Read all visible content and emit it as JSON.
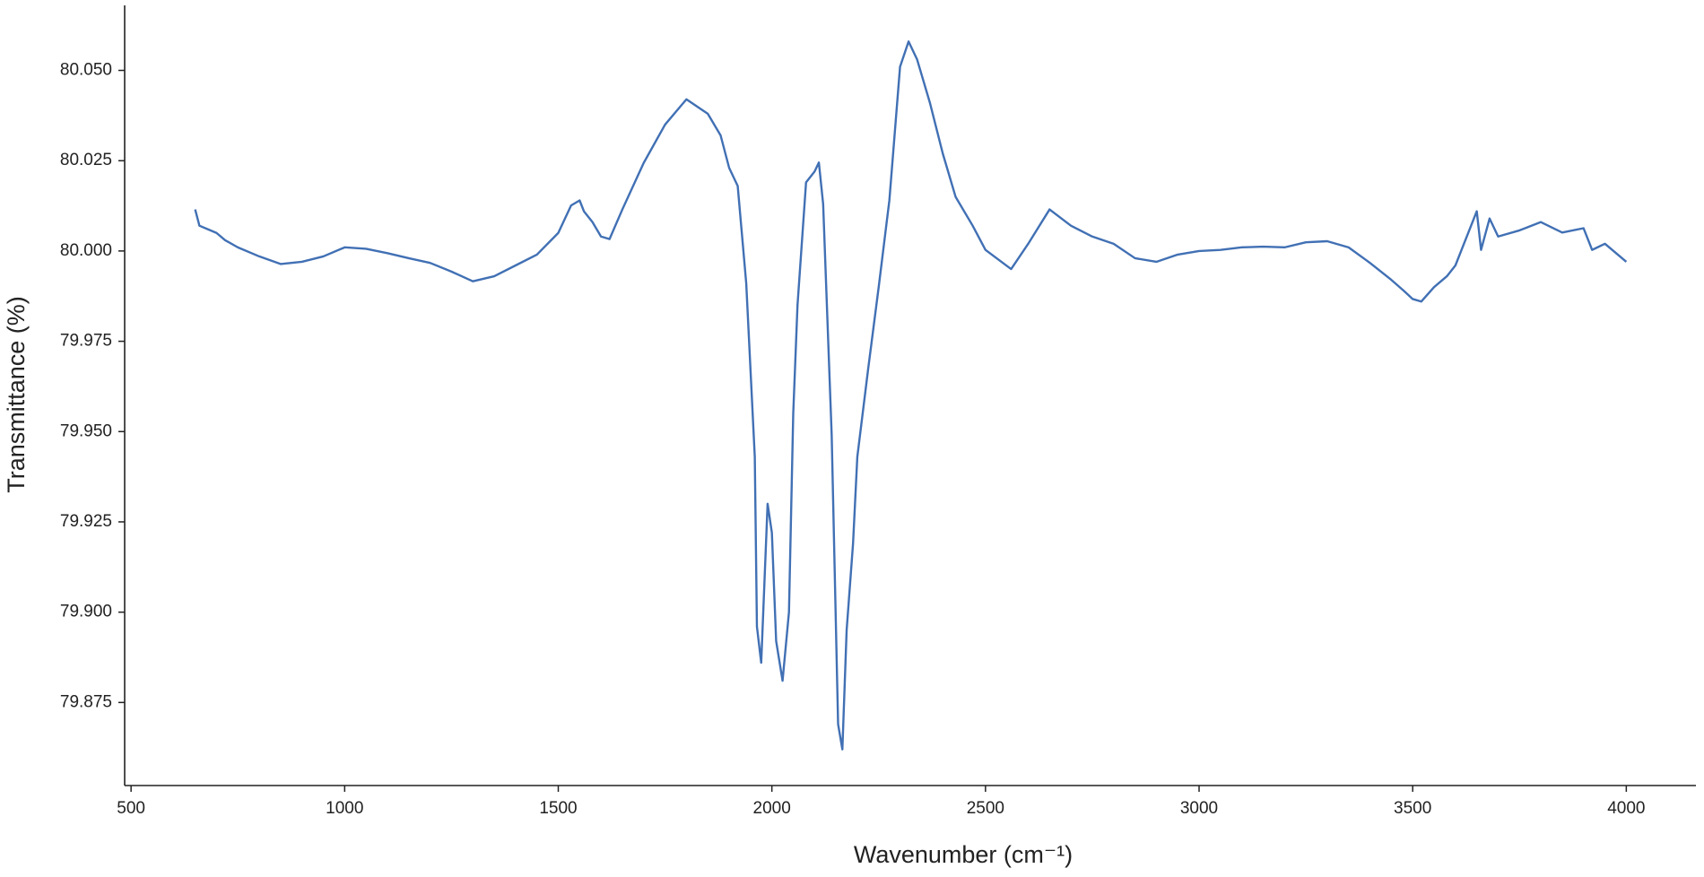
{
  "chart_data": {
    "type": "line",
    "xlabel": "Wavenumber (cm⁻¹)",
    "ylabel": "Transmittance (%)",
    "xlim": [
      485,
      4163
    ],
    "ylim": [
      79.852,
      80.068
    ],
    "xticks": [
      500,
      1000,
      1500,
      2000,
      2500,
      3000,
      3500,
      4000
    ],
    "yticks": [
      {
        "value": 79.875,
        "label": "79.875"
      },
      {
        "value": 79.9,
        "label": "79.900"
      },
      {
        "value": 79.925,
        "label": "79.925"
      },
      {
        "value": 79.95,
        "label": "79.950"
      },
      {
        "value": 79.975,
        "label": "79.975"
      },
      {
        "value": 80.0,
        "label": "80.000"
      },
      {
        "value": 80.025,
        "label": "80.025"
      },
      {
        "value": 80.05,
        "label": "80.050"
      }
    ],
    "grid": false,
    "x": [
      650,
      660,
      700,
      720,
      750,
      800,
      850,
      900,
      950,
      1000,
      1050,
      1100,
      1150,
      1200,
      1250,
      1300,
      1350,
      1400,
      1450,
      1500,
      1530,
      1550,
      1560,
      1580,
      1600,
      1620,
      1650,
      1700,
      1750,
      1800,
      1850,
      1880,
      1900,
      1920,
      1940,
      1960,
      1965,
      1975,
      1990,
      2000,
      2010,
      2025,
      2040,
      2050,
      2060,
      2080,
      2100,
      2110,
      2120,
      2140,
      2155,
      2165,
      2175,
      2190,
      2200,
      2225,
      2250,
      2275,
      2300,
      2320,
      2340,
      2370,
      2400,
      2430,
      2470,
      2500,
      2560,
      2600,
      2650,
      2700,
      2750,
      2800,
      2850,
      2900,
      2950,
      3000,
      3050,
      3100,
      3150,
      3200,
      3250,
      3300,
      3350,
      3400,
      3450,
      3480,
      3500,
      3520,
      3550,
      3580,
      3600,
      3620,
      3650,
      3660,
      3680,
      3700,
      3750,
      3800,
      3850,
      3900,
      3920,
      3950,
      4000
    ],
    "series": [
      {
        "name": "Transmittance",
        "color": "#4170b4",
        "values": [
          80.0115,
          80.007,
          80.005,
          80.003,
          80.001,
          79.9985,
          79.9964,
          79.997,
          79.9985,
          80.001,
          80.0006,
          79.9994,
          79.998,
          79.9967,
          79.9943,
          79.9916,
          79.993,
          79.996,
          79.999,
          80.005,
          80.0126,
          80.014,
          80.011,
          80.008,
          80.004,
          80.0033,
          80.0115,
          80.0244,
          80.035,
          80.042,
          80.038,
          80.032,
          80.023,
          80.018,
          79.991,
          79.943,
          79.896,
          79.886,
          79.93,
          79.922,
          79.892,
          79.881,
          79.9,
          79.955,
          79.985,
          80.019,
          80.022,
          80.0245,
          80.013,
          79.949,
          79.869,
          79.862,
          79.895,
          79.919,
          79.943,
          79.967,
          79.99,
          80.014,
          80.051,
          80.058,
          80.053,
          80.041,
          80.027,
          80.015,
          80.007,
          80.0003,
          79.995,
          80.002,
          80.0115,
          80.007,
          80.004,
          80.002,
          79.998,
          79.997,
          79.999,
          80.0,
          80.0003,
          80.001,
          80.0012,
          80.001,
          80.0024,
          80.0027,
          80.001,
          79.9967,
          79.992,
          79.9889,
          79.9867,
          79.986,
          79.99,
          79.993,
          79.996,
          80.002,
          80.011,
          80.0003,
          80.009,
          80.004,
          80.0057,
          80.008,
          80.0051,
          80.0063,
          80.0003,
          80.002,
          79.997
        ]
      }
    ]
  }
}
